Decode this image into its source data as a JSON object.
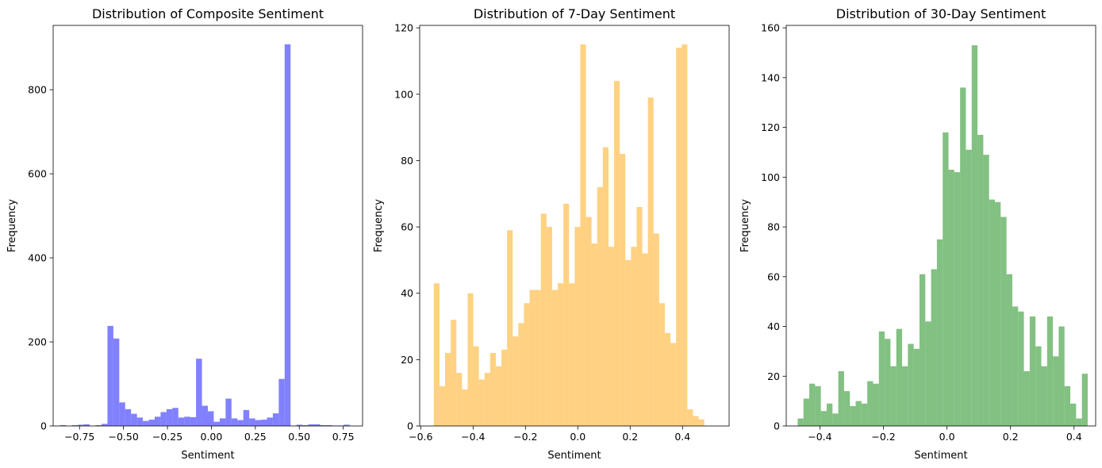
{
  "chart_data": [
    {
      "type": "bar",
      "title": "Distribution of Composite Sentiment",
      "xlabel": "Sentiment",
      "ylabel": "Frequency",
      "color": "#4b4bff",
      "bin_start": -0.86,
      "bin_width": 0.0336,
      "values": [
        2,
        0,
        2,
        3,
        4,
        0,
        2,
        5,
        238,
        208,
        56,
        40,
        29,
        20,
        12,
        15,
        22,
        33,
        40,
        43,
        20,
        22,
        21,
        160,
        48,
        35,
        10,
        18,
        65,
        18,
        14,
        38,
        18,
        14,
        15,
        20,
        30,
        112,
        908,
        0,
        3,
        2,
        4,
        4,
        2,
        2,
        1,
        1,
        3,
        0
      ],
      "xlim": [
        -0.9,
        0.86
      ],
      "ylim": [
        0,
        953
      ],
      "xticks": [
        -0.75,
        -0.5,
        -0.25,
        0.0,
        0.25,
        0.5,
        0.75
      ],
      "xtick_labels": [
        "−0.75",
        "−0.50",
        "−0.25",
        "0.00",
        "0.25",
        "0.50",
        "0.75"
      ],
      "yticks": [
        0,
        200,
        400,
        600,
        800
      ],
      "ytick_labels": [
        "0",
        "200",
        "400",
        "600",
        "800"
      ]
    },
    {
      "type": "bar",
      "title": "Distribution of 7-Day Sentiment",
      "xlabel": "Sentiment",
      "ylabel": "Frequency",
      "color": "#ffbd4d",
      "bin_start": -0.55,
      "bin_width": 0.02152,
      "values": [
        43,
        12,
        22,
        32,
        16,
        11,
        40,
        24,
        14,
        16,
        22,
        18,
        23,
        59,
        27,
        31,
        37,
        41,
        41,
        64,
        60,
        41,
        43,
        67,
        43,
        60,
        115,
        63,
        55,
        72,
        84,
        54,
        104,
        82,
        50,
        54,
        66,
        52,
        99,
        58,
        37,
        28,
        25,
        114,
        115,
        5,
        3,
        2,
        0,
        0
      ],
      "xlim": [
        -0.604,
        0.578
      ],
      "ylim": [
        0,
        120.75
      ],
      "xticks": [
        -0.6,
        -0.4,
        -0.2,
        0.0,
        0.2,
        0.4
      ],
      "xtick_labels": [
        "−0.6",
        "−0.4",
        "−0.2",
        "0.0",
        "0.2",
        "0.4"
      ],
      "yticks": [
        0,
        20,
        40,
        60,
        80,
        100,
        120
      ],
      "ytick_labels": [
        "0",
        "20",
        "40",
        "60",
        "80",
        "100",
        "120"
      ]
    },
    {
      "type": "bar",
      "title": "Distribution of 30-Day Sentiment",
      "xlabel": "Sentiment",
      "ylabel": "Frequency",
      "color": "#4da64d",
      "bin_start": -0.47,
      "bin_width": 0.01826,
      "values": [
        3,
        11,
        17,
        16,
        6,
        9,
        5,
        22,
        14,
        8,
        10,
        9,
        18,
        17,
        38,
        35,
        24,
        39,
        24,
        33,
        31,
        61,
        42,
        63,
        75,
        118,
        103,
        102,
        136,
        111,
        153,
        117,
        109,
        91,
        90,
        84,
        61,
        48,
        46,
        22,
        44,
        32,
        24,
        44,
        28,
        40,
        16,
        9,
        3,
        21
      ],
      "xlim": [
        -0.506,
        0.468
      ],
      "ylim": [
        0,
        161
      ],
      "xticks": [
        -0.4,
        -0.2,
        0.0,
        0.2,
        0.4
      ],
      "xtick_labels": [
        "−0.4",
        "−0.2",
        "0.0",
        "0.2",
        "0.4"
      ],
      "yticks": [
        0,
        20,
        40,
        60,
        80,
        100,
        120,
        140,
        160
      ],
      "ytick_labels": [
        "0",
        "20",
        "40",
        "60",
        "80",
        "100",
        "120",
        "140",
        "160"
      ]
    }
  ]
}
